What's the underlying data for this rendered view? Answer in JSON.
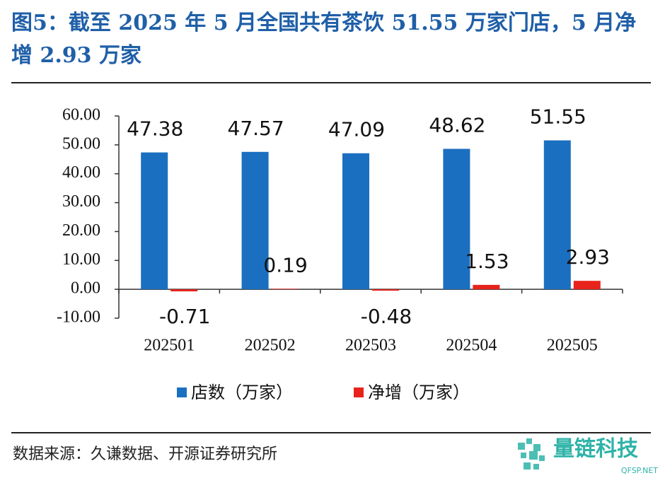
{
  "chart_data": {
    "type": "bar",
    "title": "图5：截至 2025 年 5 月全国共有茶饮 51.55 万家门店，5 月净增 2.93 万家",
    "categories": [
      "202501",
      "202502",
      "202503",
      "202504",
      "202505"
    ],
    "series": [
      {
        "name": "店数（万家）",
        "color": "#1b6fc0",
        "values": [
          47.38,
          47.57,
          47.09,
          48.62,
          51.55
        ]
      },
      {
        "name": "净增（万家）",
        "color": "#e8231c",
        "values": [
          -0.71,
          0.19,
          -0.48,
          1.53,
          2.93
        ]
      }
    ],
    "ylim": [
      -10,
      60
    ],
    "yticks": [
      {
        "value": -10,
        "label": "-10.00"
      },
      {
        "value": 0,
        "label": "0.00"
      },
      {
        "value": 10,
        "label": "10.00"
      },
      {
        "value": 20,
        "label": "20.00"
      },
      {
        "value": 30,
        "label": "30.00"
      },
      {
        "value": 40,
        "label": "40.00"
      },
      {
        "value": 50,
        "label": "50.00"
      },
      {
        "value": 60,
        "label": "60.00"
      }
    ],
    "legend": "bottom",
    "source": "数据来源：久谦数据、开源证券研究所",
    "watermark": {
      "name": "量链科技",
      "site": "QFSP.NET"
    }
  }
}
